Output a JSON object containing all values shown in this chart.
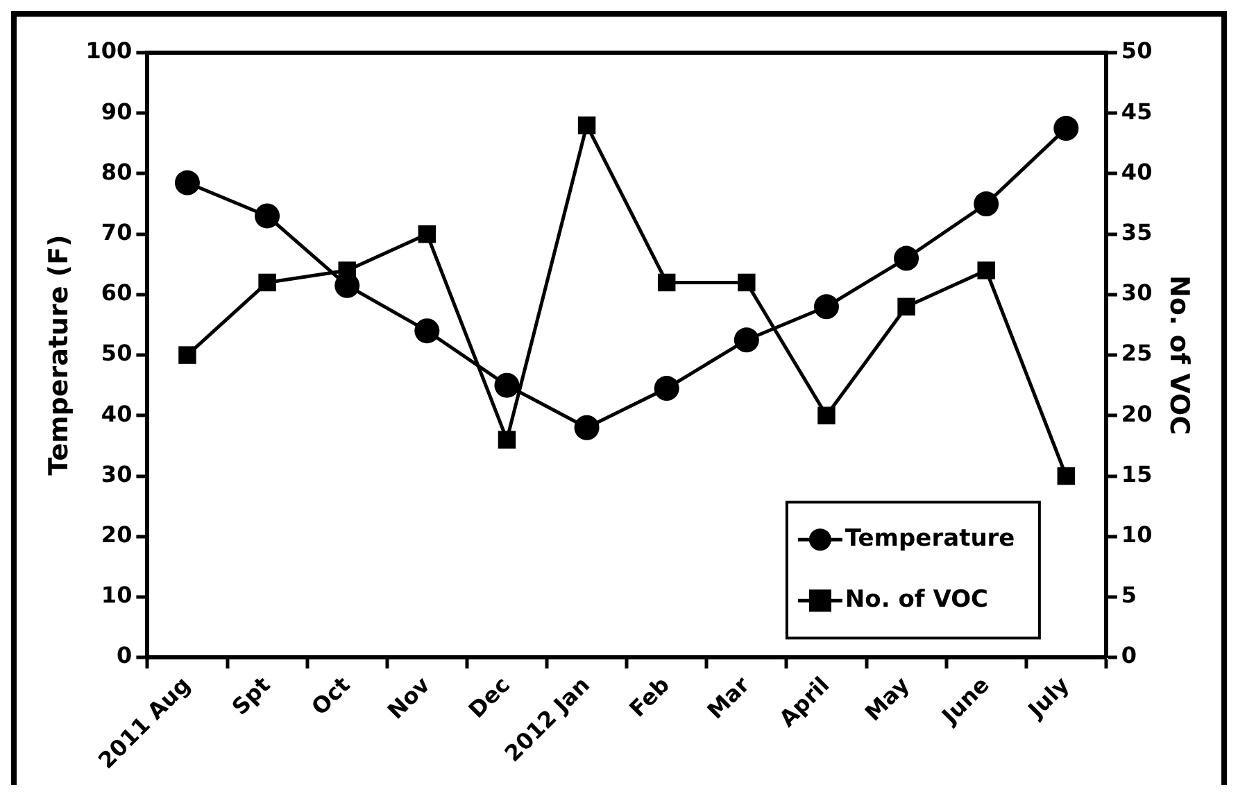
{
  "chart_data": {
    "type": "line",
    "categories": [
      "2011 Aug",
      "Spt",
      "Oct",
      "Nov",
      "Dec",
      "2012 Jan",
      "Feb",
      "Mar",
      "April",
      "May",
      "June",
      "July"
    ],
    "series": [
      {
        "name": "Temperature",
        "color": "#000000",
        "marker": "circle",
        "values": [
          78.5,
          73,
          61.5,
          54,
          45,
          38,
          44.5,
          52.5,
          58,
          66,
          75,
          87.5
        ]
      },
      {
        "name": "No. of VOC",
        "color": "#000000",
        "marker": "square",
        "axis": "y2",
        "values": [
          25,
          31,
          32,
          35,
          18,
          44,
          31,
          31,
          20,
          29,
          32,
          15
        ]
      }
    ],
    "ylabel": "Temperature (F)",
    "y2label": "No. of VOC",
    "ylim": [
      0,
      100
    ],
    "yticks": [
      0,
      10,
      20,
      30,
      40,
      50,
      60,
      70,
      80,
      90,
      100
    ],
    "y2lim": [
      0,
      50
    ],
    "y2ticks": [
      0,
      5,
      10,
      15,
      20,
      25,
      30,
      35,
      40,
      45,
      50
    ],
    "grid": false,
    "legend": "bottom right",
    "line_style": "solid"
  }
}
